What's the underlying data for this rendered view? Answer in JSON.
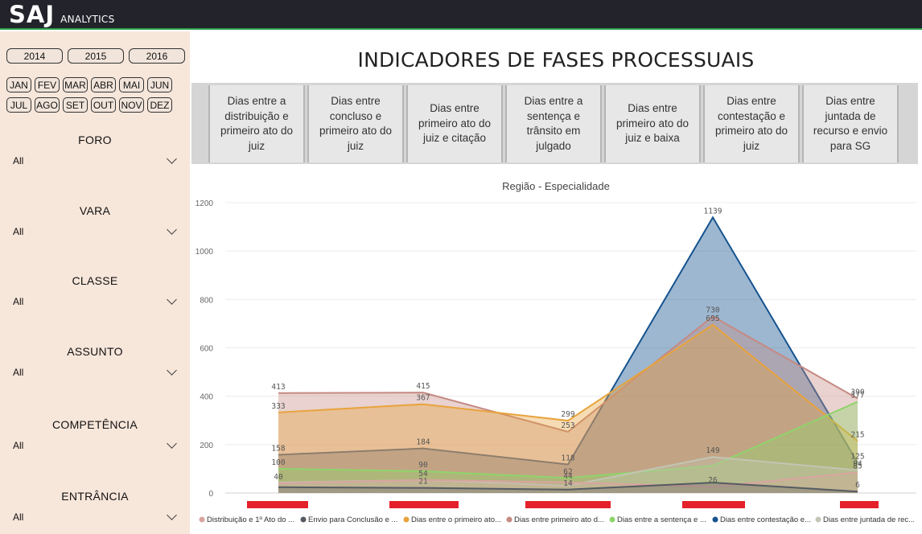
{
  "header": {
    "brand": "SAJ",
    "subtitle": "ANALYTICS"
  },
  "sidebar": {
    "years": [
      "2014",
      "2015",
      "2016"
    ],
    "months_row1": [
      "JAN",
      "FEV",
      "MAR",
      "ABR",
      "MAI",
      "JUN"
    ],
    "months_row2": [
      "JUL",
      "AGO",
      "SET",
      "OUT",
      "NOV",
      "DEZ"
    ],
    "filters": [
      {
        "title": "FORO",
        "value": "All"
      },
      {
        "title": "VARA",
        "value": "All"
      },
      {
        "title": "CLASSE",
        "value": "All"
      },
      {
        "title": "ASSUNTO",
        "value": "All"
      },
      {
        "title": "COMPETÊNCIA",
        "value": "All"
      },
      {
        "title": "ENTRÂNCIA",
        "value": "All"
      }
    ]
  },
  "main": {
    "title": "INDICADORES DE FASES PROCESSUAIS",
    "tabs": [
      "Dias entre a distribuição e primeiro ato do juiz",
      "Dias entre concluso e primeiro ato do juiz",
      "Dias entre primeiro ato do juiz e citação",
      "Dias entre a sentença e trânsito em julgado",
      "Dias entre primeiro ato do juiz e baixa",
      "Dias entre contestação e primeiro ato do juiz",
      "Dias entre juntada de recurso e envio para SG"
    ]
  },
  "chart_data": {
    "type": "area",
    "title": "Região - Especialidade",
    "ylim": [
      0,
      1200
    ],
    "yticks": [
      0,
      200,
      400,
      600,
      800,
      1000,
      1200
    ],
    "grid": true,
    "legend_position": "bottom",
    "categories": [
      "",
      "",
      "",
      "",
      ""
    ],
    "series": [
      {
        "name": "Distribuição e 1º Ato do ...",
        "color": "#d9a4a0",
        "values": [
          40,
          54,
          44,
          26,
          85
        ],
        "labels": [
          "40",
          "54",
          "44",
          "26",
          "85"
        ]
      },
      {
        "name": "Envio para Conclusão e ...",
        "color": "#555b61",
        "values": [
          24,
          21,
          14,
          43,
          6
        ],
        "labels": [
          "",
          "21",
          "14",
          "",
          "6"
        ]
      },
      {
        "name": "Dias entre o primeiro ato...",
        "color": "#e8a33c",
        "values": [
          333,
          367,
          299,
          695,
          215
        ],
        "labels": [
          "333",
          "367",
          "299",
          "695",
          "215"
        ]
      },
      {
        "name": "Dias entre primeiro ato d...",
        "color": "#c58a82",
        "values": [
          413,
          415,
          253,
          730,
          390
        ],
        "labels": [
          "413",
          "415",
          "253",
          "730",
          "390"
        ]
      },
      {
        "name": "Dias entre a sentença e ...",
        "color": "#8fd46a",
        "values": [
          100,
          90,
          62,
          113,
          377
        ],
        "labels": [
          "100",
          "90",
          "62",
          "",
          "377"
        ]
      },
      {
        "name": "Dias entre contestação e...",
        "color": "#15538f",
        "values": [
          158,
          184,
          118,
          1139,
          125
        ],
        "labels": [
          "158",
          "184",
          "118",
          "1139",
          "125"
        ]
      },
      {
        "name": "Dias entre juntada de rec...",
        "color": "#c2c6b4",
        "values": [
          43,
          54,
          30,
          149,
          94
        ],
        "labels": [
          "",
          "",
          "",
          "149",
          "94"
        ]
      }
    ],
    "x_bars_color": "#e4202b"
  }
}
